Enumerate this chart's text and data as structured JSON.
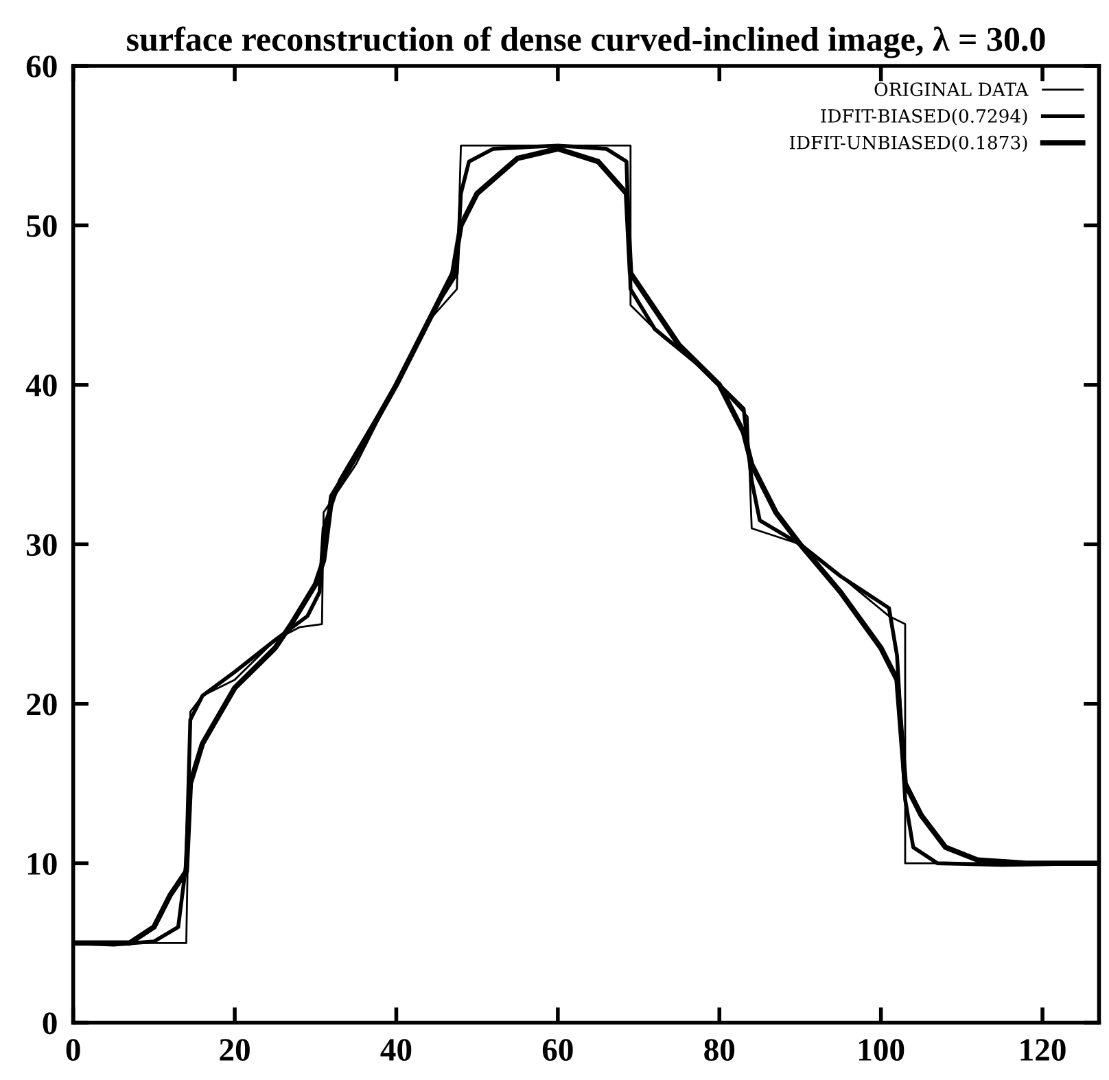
{
  "chart_data": {
    "type": "line",
    "title": "surface reconstruction of dense curved-inclined image, λ = 30.0",
    "xlim": [
      0,
      127
    ],
    "ylim": [
      0,
      60
    ],
    "xticks": [
      0,
      20,
      40,
      60,
      80,
      100,
      120
    ],
    "yticks": [
      0,
      10,
      20,
      30,
      40,
      50,
      60
    ],
    "grid": false,
    "legend": "top right",
    "marker": "none",
    "line_style": "solid",
    "series": [
      {
        "name": "ORIGINAL DATA",
        "color": "#000000",
        "x": [
          0,
          14,
          14.5,
          16,
          20,
          25,
          28,
          30.8,
          31,
          35,
          40,
          44,
          47.5,
          48,
          69,
          69,
          73,
          78,
          83.5,
          84,
          90,
          95,
          101,
          103,
          103,
          127
        ],
        "values": [
          5,
          5,
          19.5,
          20.5,
          21.5,
          24,
          24.8,
          25,
          32,
          35,
          40,
          44,
          46,
          55,
          55,
          45,
          43,
          41,
          38,
          31,
          30,
          28,
          25.5,
          25,
          10,
          10
        ]
      },
      {
        "name": "IDFIT-BIASED(0.7294)",
        "color": "#000000",
        "x": [
          0,
          5,
          10,
          13,
          14,
          14.5,
          16,
          20,
          25,
          29,
          30.5,
          31,
          33,
          40,
          45,
          47.5,
          48,
          49,
          52,
          60,
          66,
          68.5,
          69,
          72,
          78,
          83,
          84,
          85,
          90,
          95,
          101,
          102,
          103,
          104,
          107,
          115,
          127
        ],
        "values": [
          5,
          4.9,
          5.1,
          6,
          10,
          19,
          20.5,
          22,
          24,
          25.5,
          27,
          31,
          34,
          40,
          45,
          47,
          52,
          54,
          54.8,
          55,
          54.8,
          54,
          46,
          43.5,
          41,
          38.5,
          34,
          31.5,
          30,
          28,
          26,
          23,
          14,
          11,
          10,
          9.9,
          10
        ]
      },
      {
        "name": "IDFIT-UNBIASED(0.1873)",
        "color": "#000000",
        "x": [
          0,
          7,
          10,
          12,
          14,
          14.5,
          16,
          20,
          25,
          27,
          30,
          31,
          32,
          35,
          40,
          45,
          47,
          48,
          50,
          55,
          60,
          65,
          68.5,
          69,
          71,
          75,
          80,
          83,
          84,
          87,
          90,
          95,
          100,
          102,
          103,
          105,
          108,
          112,
          118,
          127
        ],
        "values": [
          5,
          5,
          6,
          8,
          9.5,
          15,
          17.5,
          21,
          23.5,
          25,
          27.5,
          29,
          33,
          35.5,
          40,
          45,
          47,
          50,
          52,
          54.2,
          54.8,
          54,
          52,
          47,
          45.5,
          42.5,
          40,
          37,
          35,
          32,
          30,
          27,
          23.5,
          21.5,
          15,
          13,
          11,
          10.2,
          10,
          10
        ]
      }
    ]
  }
}
